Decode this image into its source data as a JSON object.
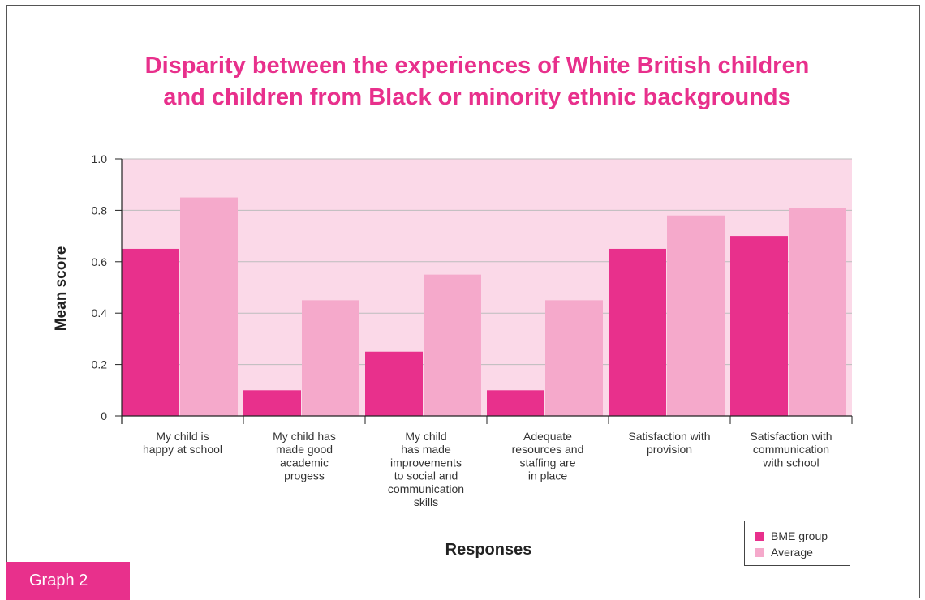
{
  "chart_data": {
    "type": "bar",
    "title": "Disparity between the experiences of White British children\nand children from Black or minority ethnic backgrounds",
    "xlabel": "Responses",
    "ylabel": "Mean score",
    "ylim": [
      0,
      1.0
    ],
    "yticks": [
      "0",
      "0.2",
      "0.4",
      "0.6",
      "0.8",
      "1.0"
    ],
    "categories": [
      "My child is\nhappy at school",
      "My child has\nmade good\nacademic\nprogess",
      "My child\nhas made\nimprovements\nto social and\ncommunication\nskills",
      "Adequate\nresources and\nstaffing are\nin place",
      "Satisfaction with\nprovision",
      "Satisfaction with\ncommunication\nwith school"
    ],
    "series": [
      {
        "name": "BME group",
        "values": [
          0.65,
          0.1,
          0.25,
          0.1,
          0.65,
          0.7
        ]
      },
      {
        "name": "Average",
        "values": [
          0.85,
          0.45,
          0.55,
          0.45,
          0.78,
          0.81
        ]
      }
    ],
    "grid": true,
    "legend": "bottom-right"
  },
  "colors": {
    "bme": "#e8308c",
    "average": "#f5a9cb",
    "plot_background": "#fbd9e8",
    "gridline": "#bdbdbd",
    "title": "#e8308c"
  },
  "caption": {
    "label": "Graph 2"
  }
}
